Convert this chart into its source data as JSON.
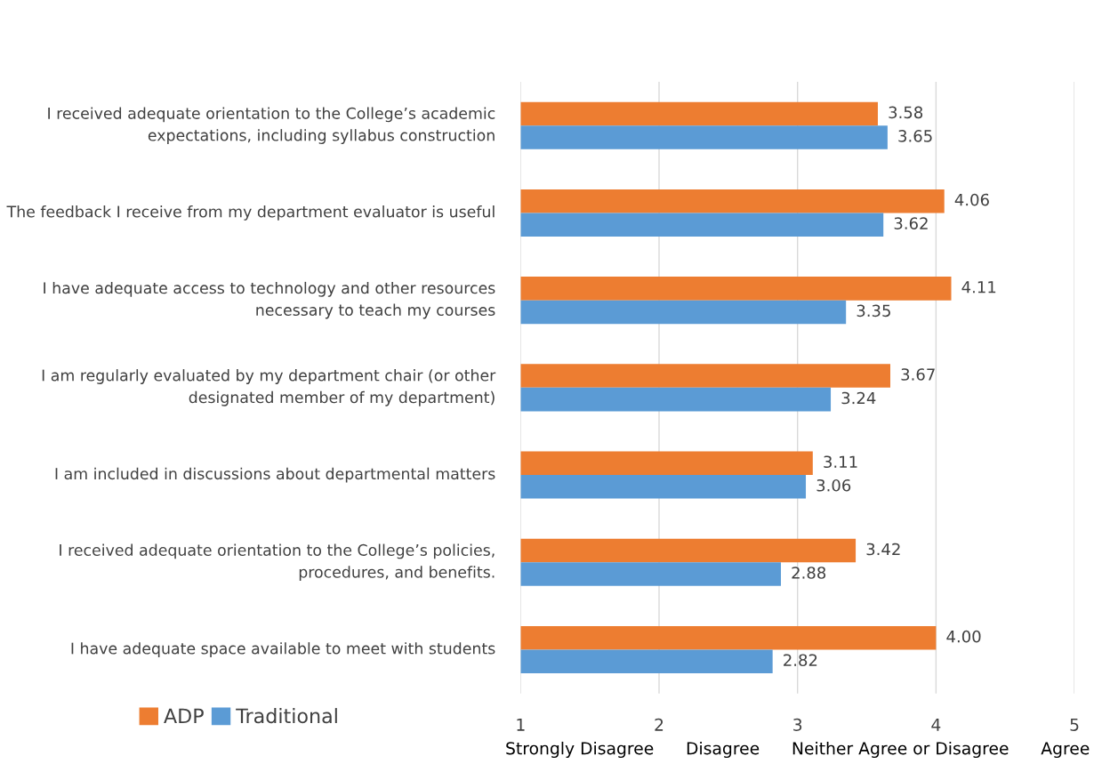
{
  "chart_data": {
    "type": "bar",
    "orientation": "horizontal",
    "categories": [
      "I received adequate orientation to the College’s academic expectations, including syllabus construction",
      "The feedback I receive from my department evaluator is useful",
      "I have adequate access to technology and other resources necessary to teach my courses",
      "I am regularly evaluated by my department chair (or other designated member of my department)",
      "I am included in discussions about departmental matters",
      "I received adequate orientation to the College’s policies, procedures, and benefits.",
      "I have adequate space available to meet with students"
    ],
    "series": [
      {
        "name": "ADP",
        "color": "#ed7d31",
        "values": [
          3.58,
          4.06,
          4.11,
          3.67,
          3.11,
          3.42,
          4.0
        ],
        "value_labels": [
          "3.58",
          "4.06",
          "4.11",
          "3.67",
          "3.11",
          "3.42",
          "4.00"
        ]
      },
      {
        "name": "Traditional",
        "color": "#5b9bd5",
        "values": [
          3.65,
          3.62,
          3.35,
          3.24,
          3.06,
          2.88,
          2.82
        ],
        "value_labels": [
          "3.65",
          "3.62",
          "3.35",
          "3.24",
          "3.06",
          "2.88",
          "2.82"
        ]
      }
    ],
    "xlim": [
      1,
      5
    ],
    "xticks": [
      1,
      2,
      3,
      4,
      5
    ],
    "xlabel": "Strongly Disagree      Disagree      Neither Agree or Disagree      Agree",
    "grid": "x",
    "legend": "bottom left"
  }
}
